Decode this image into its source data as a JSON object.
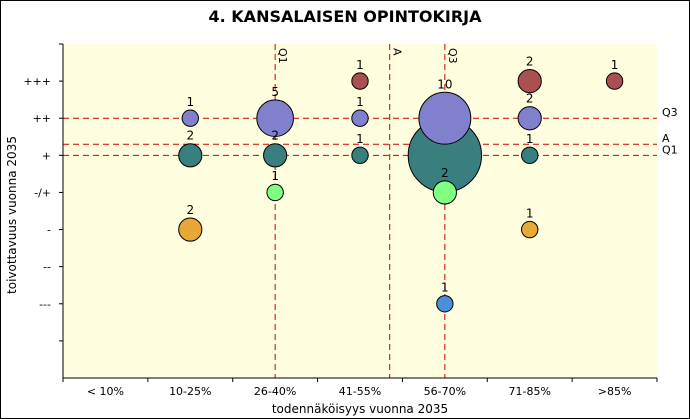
{
  "chart_data": {
    "type": "scatter",
    "title": "4. KANSALAISEN OPINTOKIRJA",
    "xlabel": "todennäköisyys vuonna 2035",
    "ylabel": "toivottavuus vuonna 2035",
    "x_categories": [
      "< 10%",
      "10-25%",
      "26-40%",
      "41-55%",
      "56-70%",
      "71-85%",
      ">85%"
    ],
    "y_categories": [
      "---",
      "--",
      "-",
      "-/+",
      "+",
      "++",
      "+++"
    ],
    "xlim": [
      0.5,
      7.5
    ],
    "ylim": [
      -1.0,
      8.0
    ],
    "reference_lines": {
      "vertical": [
        {
          "label": "Q1",
          "value": 3.0
        },
        {
          "label": "A",
          "value": 4.35
        },
        {
          "label": "Q3",
          "value": 5.0
        }
      ],
      "horizontal": [
        {
          "label": "Q3",
          "value": 6.0
        },
        {
          "label": "A",
          "value": 5.3
        },
        {
          "label": "Q1",
          "value": 5.0
        }
      ]
    },
    "bubbles": [
      {
        "x": 2,
        "y": 6,
        "count": 1,
        "color": "#8080cc"
      },
      {
        "x": 2,
        "y": 5,
        "count": 2,
        "color": "#3a7f7f"
      },
      {
        "x": 2,
        "y": 3,
        "count": 2,
        "color": "#e8a838"
      },
      {
        "x": 3,
        "y": 6,
        "count": 5,
        "color": "#8080cc"
      },
      {
        "x": 3,
        "y": 5,
        "count": 2,
        "color": "#3a7f7f"
      },
      {
        "x": 3,
        "y": 4,
        "count": 1,
        "color": "#80ff80"
      },
      {
        "x": 4,
        "y": 7,
        "count": 1,
        "color": "#aa5050"
      },
      {
        "x": 4,
        "y": 6,
        "count": 1,
        "color": "#8080cc"
      },
      {
        "x": 4,
        "y": 5,
        "count": 1,
        "color": "#3a7f7f"
      },
      {
        "x": 5,
        "y": 5,
        "count": 20,
        "color": "#3a7f7f",
        "label_visible": false
      },
      {
        "x": 5,
        "y": 6,
        "count": 10,
        "color": "#8080cc"
      },
      {
        "x": 5,
        "y": 4,
        "count": 2,
        "color": "#80ff80"
      },
      {
        "x": 5,
        "y": 1,
        "count": 1,
        "color": "#4a90d9"
      },
      {
        "x": 6,
        "y": 7,
        "count": 2,
        "color": "#aa5050"
      },
      {
        "x": 6,
        "y": 6,
        "count": 2,
        "color": "#8080cc"
      },
      {
        "x": 6,
        "y": 5,
        "count": 1,
        "color": "#3a7f7f"
      },
      {
        "x": 6,
        "y": 3,
        "count": 1,
        "color": "#e8a838"
      },
      {
        "x": 7,
        "y": 7,
        "count": 1,
        "color": "#aa5050"
      }
    ],
    "colors": {
      "plot_background": "#ffffe0",
      "reference_line": "#cc0000"
    }
  }
}
